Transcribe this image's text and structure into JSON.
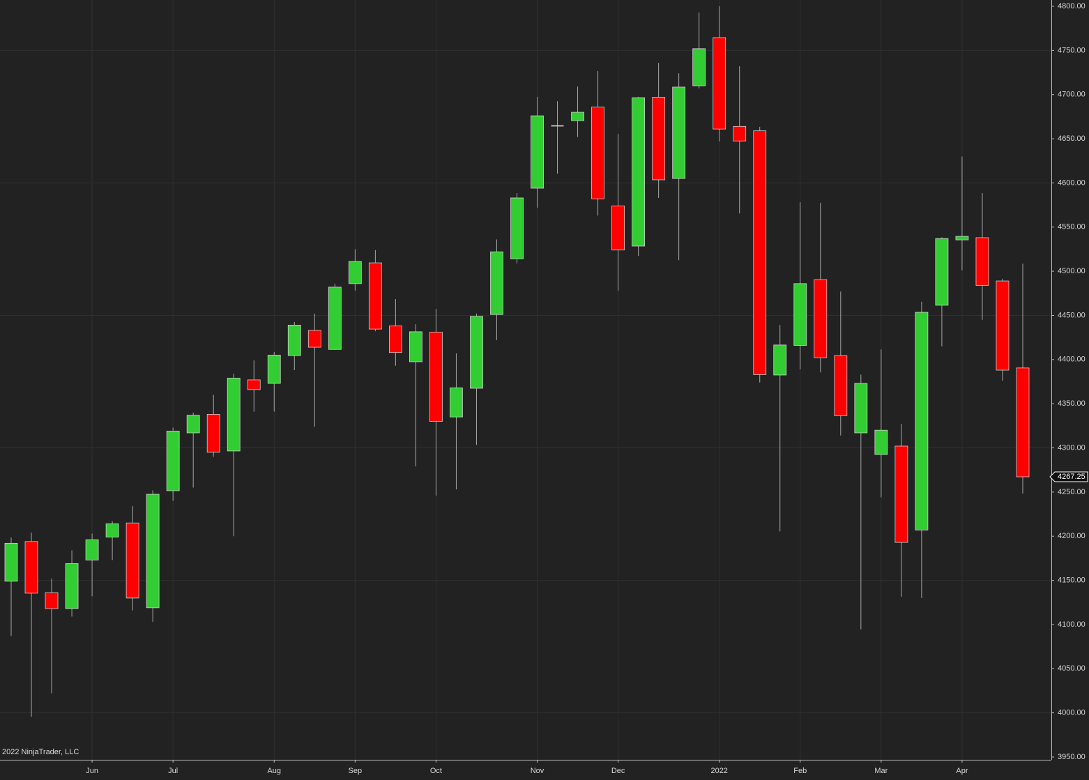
{
  "chart_data": {
    "type": "candlestick",
    "categories": [
      null,
      null,
      null,
      null,
      "Jun",
      null,
      null,
      null,
      "Jul",
      null,
      null,
      null,
      null,
      "Aug",
      null,
      null,
      null,
      "Sep",
      null,
      null,
      null,
      "Oct",
      null,
      null,
      null,
      null,
      "Nov",
      null,
      null,
      null,
      "Dec",
      null,
      null,
      null,
      null,
      "2022",
      null,
      null,
      null,
      "Feb",
      null,
      null,
      null,
      "Mar",
      null,
      null,
      null,
      "Apr",
      null,
      null,
      null
    ],
    "open": [
      4149,
      4194,
      4136,
      4118,
      4173,
      4199,
      4215,
      4119,
      4251.5,
      4317,
      4338,
      4296.5,
      4377,
      4373,
      4404.5,
      4433,
      4411.5,
      4486,
      4509.5,
      4438,
      4397.5,
      4431,
      4335,
      4367.5,
      4451,
      4514,
      4594,
      4664,
      4670.5,
      4686,
      4574,
      4528.5,
      4697,
      4605,
      4710,
      4764.5,
      4664,
      4659,
      4382.5,
      4416,
      4490.5,
      4404.5,
      4317,
      4292.5,
      4302,
      4207,
      4461.5,
      4535.5,
      4538,
      4489,
      4390.5
    ],
    "high": [
      4198.5,
      4204,
      4152,
      4184,
      4203,
      4217,
      4234,
      4252,
      4323,
      4340,
      4360,
      4384,
      4399,
      4408.5,
      4442.5,
      4452,
      4486,
      4525,
      4524,
      4468.5,
      4440,
      4457.5,
      4407,
      4452,
      4536,
      4588.5,
      4697.5,
      4692.5,
      4709,
      4726.5,
      4655.5,
      4697.5,
      4736,
      4724,
      4793,
      4800,
      4732,
      4663.5,
      4439,
      4578,
      4577.5,
      4477,
      4383,
      4411.5,
      4327,
      4465.5,
      4538.5,
      4630,
      4588.5,
      4491.5,
      4508.5
    ],
    "low": [
      4087,
      3995.5,
      4022,
      4109,
      4132,
      4173,
      4116,
      4103,
      4240,
      4255,
      4290,
      4200,
      4341,
      4341,
      4388,
      4324,
      4411,
      4478,
      4432,
      4393,
      4279,
      4246,
      4253,
      4303.5,
      4422,
      4509,
      4572,
      4610.5,
      4652,
      4563,
      4478,
      4517.5,
      4583,
      4512.5,
      4707,
      4647,
      4565.5,
      4374,
      4205.5,
      4389,
      4385.5,
      4314,
      4094.5,
      4244,
      4131.5,
      4130,
      4415,
      4501,
      4445,
      4376,
      4248.25
    ],
    "close": [
      4192,
      4135.5,
      4118,
      4169,
      4196,
      4214,
      4130,
      4247.5,
      4319,
      4337,
      4295,
      4379,
      4366,
      4405,
      4439,
      4414,
      4482,
      4511,
      4434.5,
      4408,
      4431.5,
      4330,
      4368,
      4449,
      4522,
      4583,
      4676,
      4664.5,
      4680,
      4582,
      4524,
      4696.5,
      4603.5,
      4708.5,
      4752,
      4661,
      4647.5,
      4383,
      4416.5,
      4486,
      4402,
      4336.5,
      4373,
      4320,
      4193,
      4453.5,
      4537,
      4539.5,
      4484,
      4388,
      4267.25
    ],
    "up_color": "#32cd32",
    "down_color": "#ff0000",
    "ylim": [
      3950,
      4800
    ],
    "yticks": [
      {
        "value": 3950,
        "label": "3950.00"
      },
      {
        "value": 4000,
        "label": "4000.00"
      },
      {
        "value": 4050,
        "label": "4050.00"
      },
      {
        "value": 4100,
        "label": "4100.00"
      },
      {
        "value": 4150,
        "label": "4150.00"
      },
      {
        "value": 4200,
        "label": "4200.00"
      },
      {
        "value": 4250,
        "label": "4250.00"
      },
      {
        "value": 4300,
        "label": "4300.00"
      },
      {
        "value": 4350,
        "label": "4350.00"
      },
      {
        "value": 4400,
        "label": "4400.00"
      },
      {
        "value": 4450,
        "label": "4450.00"
      },
      {
        "value": 4500,
        "label": "4500.00"
      },
      {
        "value": 4550,
        "label": "4550.00"
      },
      {
        "value": 4600,
        "label": "4600.00"
      },
      {
        "value": 4650,
        "label": "4650.00"
      },
      {
        "value": 4700,
        "label": "4700.00"
      },
      {
        "value": 4750,
        "label": "4750.00"
      },
      {
        "value": 4800,
        "label": "4800.00"
      }
    ],
    "last_price": 4267.25,
    "credit": "2022 NinjaTrader, LLC",
    "grid": true
  }
}
